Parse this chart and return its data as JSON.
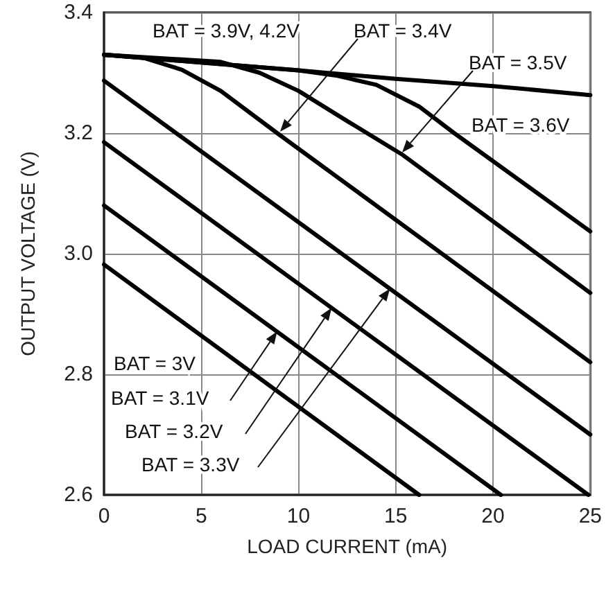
{
  "chart_data": {
    "type": "line",
    "xlabel": "LOAD CURRENT (mA)",
    "ylabel": "OUTPUT VOLTAGE (V)",
    "xlim": [
      0,
      25
    ],
    "xticks": [
      0,
      5,
      10,
      15,
      20,
      25
    ],
    "ylim": [
      2.6,
      3.4
    ],
    "yticks": [
      2.6,
      2.8,
      {
        "value": 3,
        "label": "3.0"
      },
      3.2,
      3.4
    ],
    "grid": true,
    "marker": "none",
    "line_style": "solid",
    "series": [
      {
        "color": "#000000",
        "x": [
          0,
          5,
          10,
          15,
          20,
          25
        ],
        "values": [
          3.33,
          3.317,
          3.304,
          3.29,
          3.278,
          3.263
        ]
      },
      {
        "color": "#000000",
        "x": [
          0,
          10,
          12,
          14,
          16.2,
          18,
          25
        ],
        "values": [
          3.33,
          3.304,
          3.295,
          3.28,
          3.244,
          3.2,
          3.037
        ]
      },
      {
        "color": "#000000",
        "x": [
          0,
          6,
          8,
          10,
          12.5,
          15.3,
          25
        ],
        "values": [
          3.33,
          3.318,
          3.3,
          3.27,
          3.22,
          3.165,
          2.935
        ]
      },
      {
        "color": "#000000",
        "x": [
          0,
          2,
          4,
          6,
          8.9,
          25
        ],
        "values": [
          3.33,
          3.325,
          3.305,
          3.27,
          3.2,
          2.82
        ]
      },
      {
        "color": "#000000",
        "x": [
          0,
          25
        ],
        "values": [
          3.287,
          2.7
        ]
      },
      {
        "color": "#000000",
        "x": [
          0,
          24.9
        ],
        "values": [
          3.185,
          2.6
        ]
      },
      {
        "color": "#000000",
        "x": [
          0,
          20.4
        ],
        "values": [
          3.08,
          2.6
        ]
      },
      {
        "color": "#000000",
        "x": [
          0,
          16.2
        ],
        "values": [
          2.982,
          2.6
        ]
      }
    ],
    "annotations": [
      "BAT = 3.9V, 4.2V",
      "BAT = 3.4V",
      "BAT = 3.5V",
      "BAT = 3.6V",
      "BAT = 3V",
      {
        "text": "BAT = 3.1V",
        "x": 8.9,
        "y": 2.871
      },
      {
        "text": "BAT = 3.2V",
        "x": 11.7,
        "y": 2.91
      },
      {
        "text": "BAT = 3.3V",
        "x": 14.7,
        "y": 2.942
      }
    ]
  }
}
